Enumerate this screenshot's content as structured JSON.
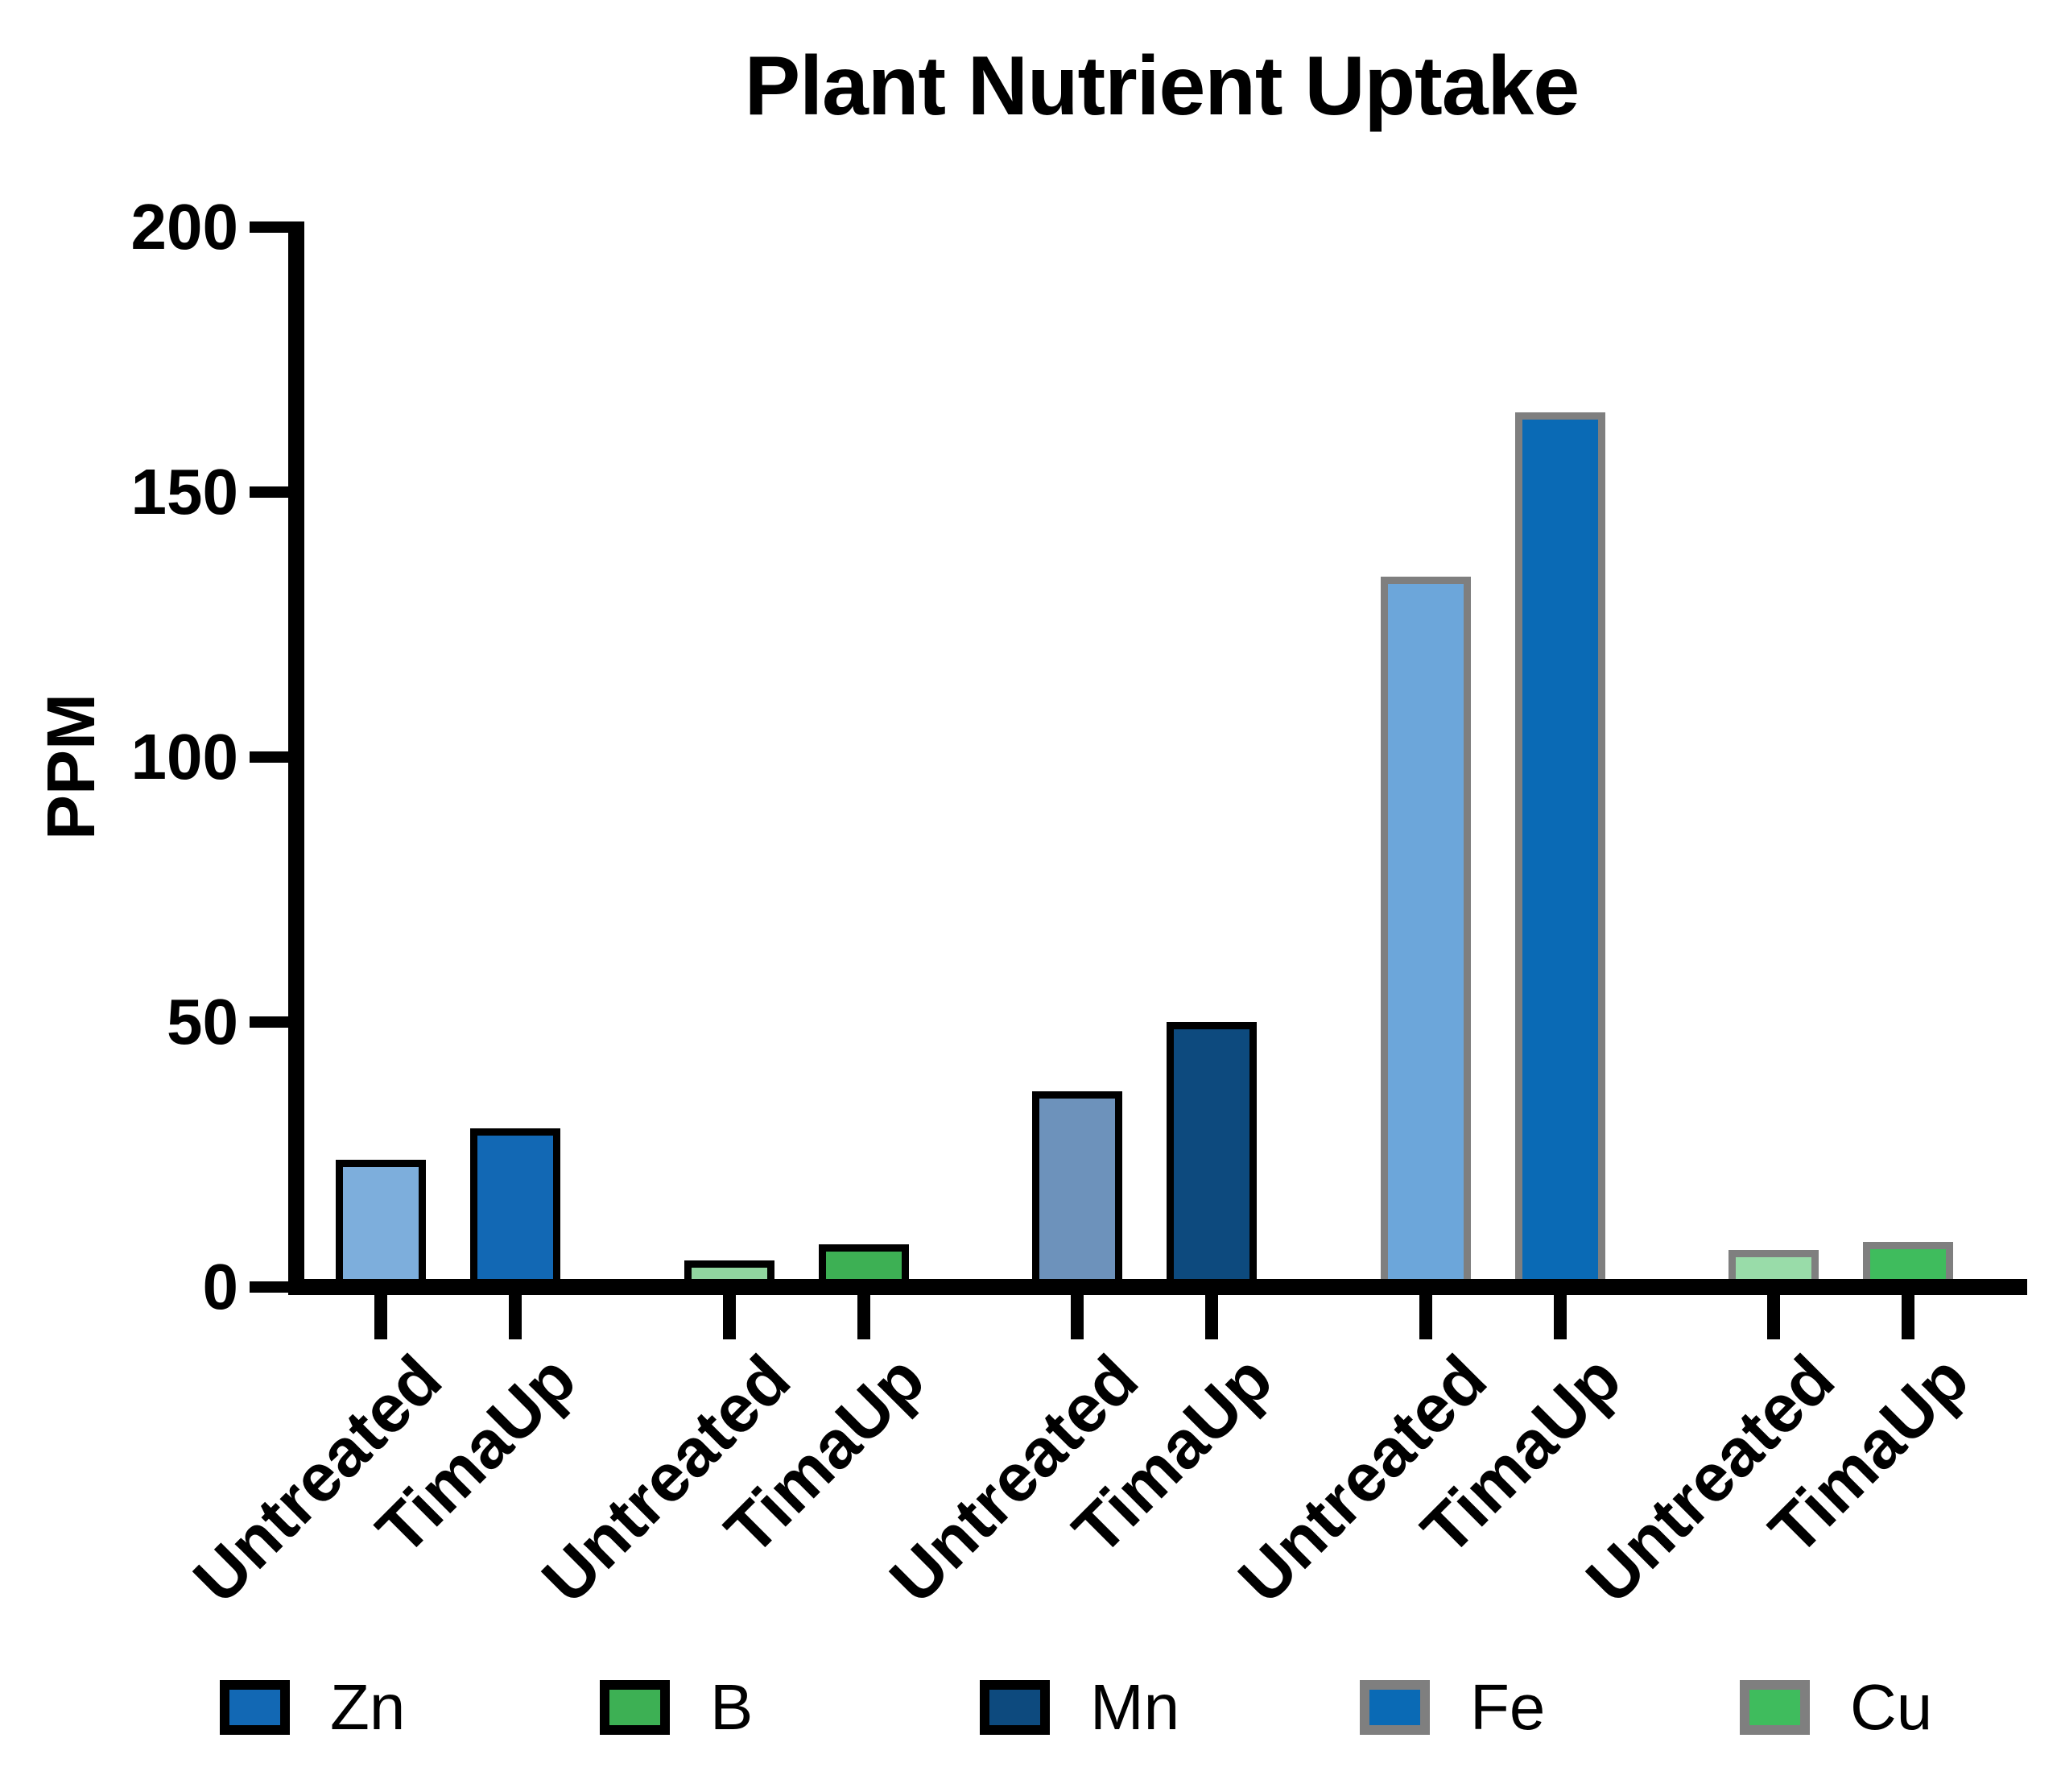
{
  "title": "Plant Nutrient Uptake",
  "y_axis": {
    "label": "PPM",
    "ticks": [
      0,
      50,
      100,
      150,
      200
    ],
    "max": 200
  },
  "x_axis": {
    "bar_labels": [
      "Untreated",
      "TimaUp"
    ]
  },
  "legend": [
    {
      "label": "Zn",
      "fill": "#1268B4",
      "border": "#000000"
    },
    {
      "label": "B",
      "fill": "#3DB054",
      "border": "#000000"
    },
    {
      "label": "Mn",
      "fill": "#0D4A7E",
      "border": "#000000"
    },
    {
      "label": "Fe",
      "fill": "#0A6AB5",
      "border": "#7F7F7F"
    },
    {
      "label": "Cu",
      "fill": "#3FBC5D",
      "border": "#7F7F7F"
    }
  ],
  "chart_data": {
    "type": "bar",
    "title": "Plant Nutrient Uptake",
    "ylabel": "PPM",
    "xlabel": "",
    "ylim": [
      0,
      200
    ],
    "yticks": [
      0,
      50,
      100,
      150,
      200
    ],
    "grid": false,
    "legend_position": "bottom",
    "categories": [
      "Untreated",
      "TimaUp"
    ],
    "series": [
      {
        "name": "Zn",
        "values": [
          24,
          30
        ],
        "fill_untreated": "#7DAEDC",
        "fill_timaup": "#1268B4",
        "outline": "#000000"
      },
      {
        "name": "B",
        "values": [
          5,
          8
        ],
        "fill_untreated": "#90D59F",
        "fill_timaup": "#3DB054",
        "outline": "#000000"
      },
      {
        "name": "Mn",
        "values": [
          37,
          50
        ],
        "fill_untreated": "#6D92BB",
        "fill_timaup": "#0D4A7E",
        "outline": "#000000"
      },
      {
        "name": "Fe",
        "values": [
          134,
          165
        ],
        "fill_untreated": "#6CA6DA",
        "fill_timaup": "#0A6AB5",
        "outline": "#7F7F7F"
      },
      {
        "name": "Cu",
        "values": [
          7,
          8.5
        ],
        "fill_untreated": "#99DCA9",
        "fill_timaup": "#3FBC5D",
        "outline": "#7F7F7F"
      }
    ],
    "units": "PPM"
  }
}
